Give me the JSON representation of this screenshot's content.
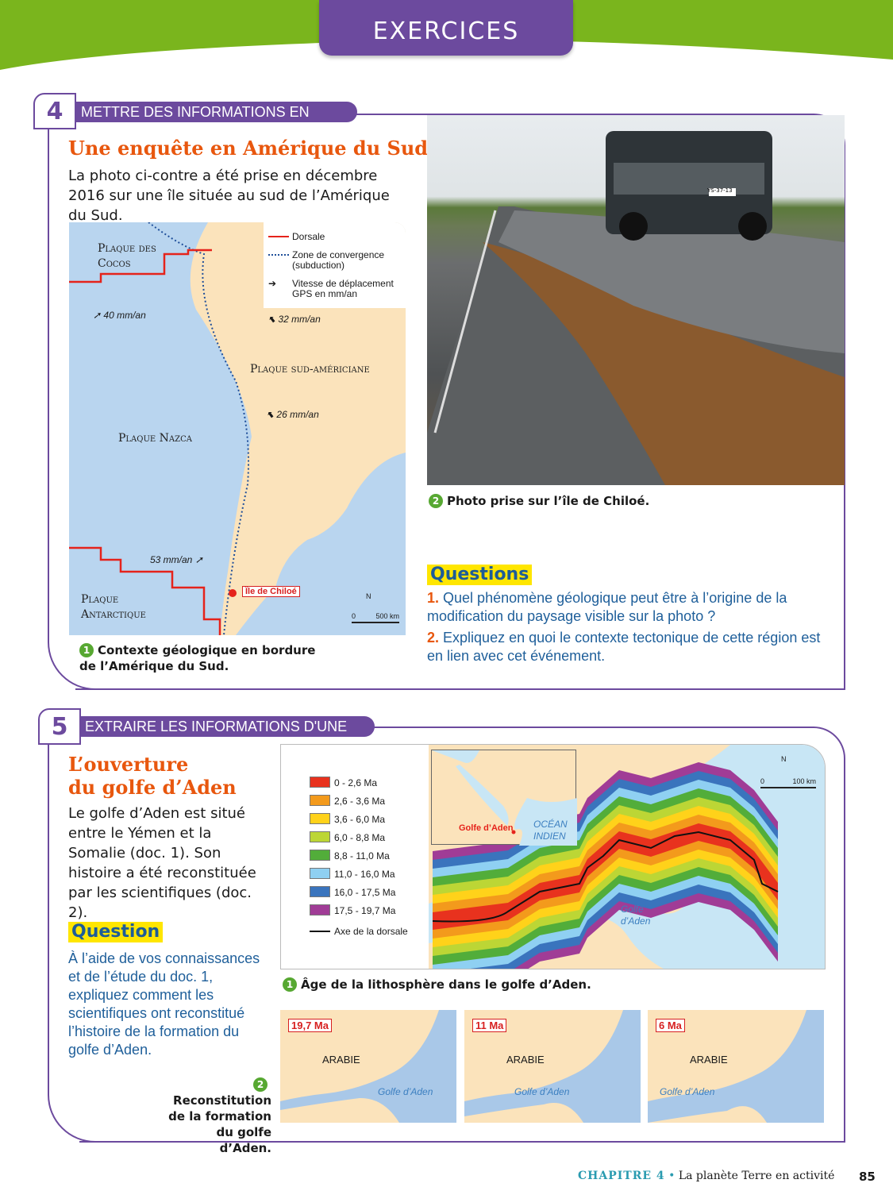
{
  "header": {
    "tab": "EXERCICES",
    "colors": {
      "green": "#7ab51d",
      "purple": "#6c4a9e",
      "orange": "#e8570e"
    }
  },
  "ex4": {
    "number": "4",
    "skill": "METTRE DES INFORMATIONS EN RELATION",
    "title": "Une enquête en Amérique du Sud",
    "intro": "La photo ci-contre a été prise en décembre 2016 sur une île située au sud de l’Amérique du Sud.",
    "map": {
      "legend": {
        "dorsale": "Dorsale",
        "convergence": "Zone de convergence (subduction)",
        "vitesse": "Vitesse de déplacement GPS en mm/an"
      },
      "plates": {
        "cocos": "Plaque des Cocos",
        "sudam": "Plaque sud-américiane",
        "nazca": "Plaque Nazca",
        "antarctique": "Plaque Antarctique"
      },
      "speeds": [
        "40 mm/an",
        "32 mm/an",
        "26 mm/an",
        "53 mm/an"
      ],
      "place": "Île de Chiloé",
      "north": "N",
      "scale": [
        "0",
        "500 km"
      ],
      "caption_num": "1",
      "caption": "Contexte géologique en bordure de l’Amérique du Sud."
    },
    "photo": {
      "caption_num": "2",
      "caption": "Photo prise sur l’île de Chiloé.",
      "plate": "YS-37-13"
    },
    "questions_title": "Questions",
    "questions": [
      {
        "n": "1.",
        "text": "Quel phénomène géologique peut être à l’origine de la modification du paysage visible sur la photo ?"
      },
      {
        "n": "2.",
        "text": "Expliquez en quoi le contexte tectonique de cette région est en lien avec cet événement."
      }
    ]
  },
  "ex5": {
    "number": "5",
    "skill": "EXTRAIRE LES INFORMATIONS D'UNE CARTE",
    "title1": "L’ouverture",
    "title2": "du golfe d’Aden",
    "intro": "Le golfe d’Aden est situé entre le Yémen et la Somalie (doc. 1). Son histoire a été reconstituée par les scientifiques (doc. 2).",
    "question_title": "Question",
    "question": "À l’aide de vos connaissances et de l’étude du doc. 1, expliquez comment les scientifiques ont reconstitué l’histoire de la formation du golfe d’Aden.",
    "map": {
      "legend": [
        {
          "label": "0 - 2,6 Ma",
          "color": "#e8321e"
        },
        {
          "label": "2,6 - 3,6 Ma",
          "color": "#f39a1c"
        },
        {
          "label": "3,6 - 6,0 Ma",
          "color": "#ffd21a"
        },
        {
          "label": "6,0 - 8,8 Ma",
          "color": "#bcd635"
        },
        {
          "label": "8,8 - 11,0 Ma",
          "color": "#52ad3a"
        },
        {
          "label": "11,0 - 16,0 Ma",
          "color": "#8fd0f2"
        },
        {
          "label": "16,0 - 17,5 Ma",
          "color": "#3a74bd"
        },
        {
          "label": "17,5 - 19,7 Ma",
          "color": "#a03c96"
        }
      ],
      "axis": "Axe de la dorsale",
      "inset_place": "Golfe d’Aden",
      "inset_ocean": "OCÉAN INDIEN",
      "gulf": "Golfe d’Aden",
      "north": "N",
      "scale": [
        "0",
        "100 km"
      ],
      "caption_num": "1",
      "caption": "Âge de la lithosphère dans le golfe d’Aden."
    },
    "recon": {
      "caption_num": "2",
      "caption": "Reconstitution de la formation du golfe d’Aden.",
      "maps": [
        {
          "age": "19,7 Ma",
          "land": "ARABIE",
          "gulf": "Golfe d’Aden"
        },
        {
          "age": "11 Ma",
          "land": "ARABIE",
          "gulf": "Golfe d’Aden"
        },
        {
          "age": "6 Ma",
          "land": "ARABIE",
          "gulf": "Golfe d’Aden"
        }
      ]
    }
  },
  "footer": {
    "chapter": "CHAPITRE 4",
    "separator": "•",
    "title": "La planète Terre en activité",
    "page": "85"
  }
}
